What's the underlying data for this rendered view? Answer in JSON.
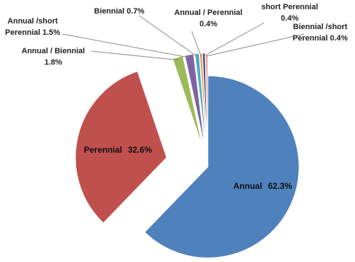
{
  "chart_data": {
    "type": "pie",
    "categories": [
      "Annual",
      "Perennial",
      "Annual / Biennial",
      "Annual /short Perennial",
      "Biennial",
      "Annual / Perennial",
      "short Perennial",
      "Biennial /short Perennial"
    ],
    "values": [
      62.3,
      32.6,
      1.8,
      1.5,
      0.7,
      0.4,
      0.4,
      0.4
    ],
    "value_labels": [
      "62.3%",
      "32.6%",
      "1.8%",
      "1.5%",
      "0.7%",
      "0.4%",
      "0.4%",
      "0.4%"
    ],
    "colors": [
      "#4f81bd",
      "#c0504d",
      "#9bbb59",
      "#8064a2",
      "#4bacc6",
      "#f79646",
      "#2c4d75",
      "#e6a0a0"
    ]
  }
}
